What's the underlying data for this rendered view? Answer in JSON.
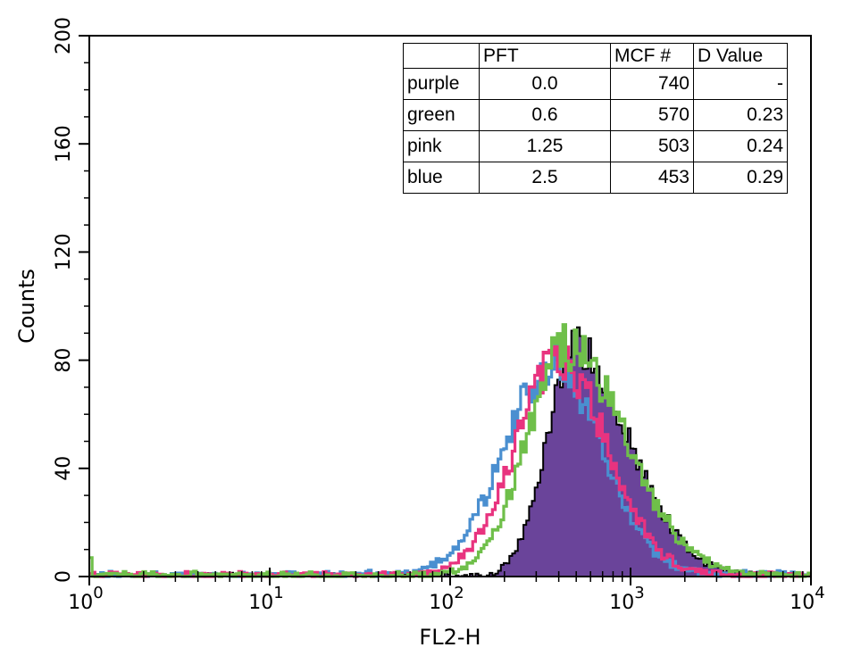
{
  "chart_data": {
    "type": "histogram",
    "xlabel": "FL2-H",
    "ylabel": "Counts",
    "xscale": "log",
    "xlim": [
      1,
      10000
    ],
    "ylim": [
      0,
      200
    ],
    "x_ticks": [
      {
        "value": 1,
        "base": "10",
        "exp": "0"
      },
      {
        "value": 10,
        "base": "10",
        "exp": "1"
      },
      {
        "value": 100,
        "base": "10",
        "exp": "2"
      },
      {
        "value": 1000,
        "base": "10",
        "exp": "3"
      },
      {
        "value": 10000,
        "base": "10",
        "exp": "4"
      }
    ],
    "y_ticks": [
      "0",
      "40",
      "80",
      "120",
      "160",
      "200"
    ],
    "series": [
      {
        "name": "purple",
        "color": "#6a449a",
        "fill": true,
        "outline": "#000000",
        "peak_x": 480,
        "peak_y": 84,
        "sigma_left": 0.15,
        "sigma_right": 0.31,
        "baseline": 0.5
      },
      {
        "name": "green",
        "color": "#6fbf4a",
        "fill": false,
        "peak_x": 440,
        "peak_y": 84,
        "sigma_left": 0.22,
        "sigma_right": 0.33,
        "baseline": 1.0
      },
      {
        "name": "pink",
        "color": "#e8337f",
        "fill": false,
        "peak_x": 400,
        "peak_y": 79,
        "sigma_left": 0.24,
        "sigma_right": 0.27,
        "baseline": 1.0
      },
      {
        "name": "blue",
        "color": "#4a8fd0",
        "fill": false,
        "peak_x": 370,
        "peak_y": 77,
        "sigma_left": 0.27,
        "sigma_right": 0.27,
        "baseline": 1.2
      }
    ]
  },
  "table": {
    "headers": [
      "",
      "PFT",
      "MCF #",
      "D Value"
    ],
    "rows": [
      [
        "purple",
        "0.0",
        "740",
        "-"
      ],
      [
        "green",
        "0.6",
        "570",
        "0.23"
      ],
      [
        "pink",
        "1.25",
        "503",
        "0.24"
      ],
      [
        "blue",
        "2.5",
        "453",
        "0.29"
      ]
    ]
  }
}
